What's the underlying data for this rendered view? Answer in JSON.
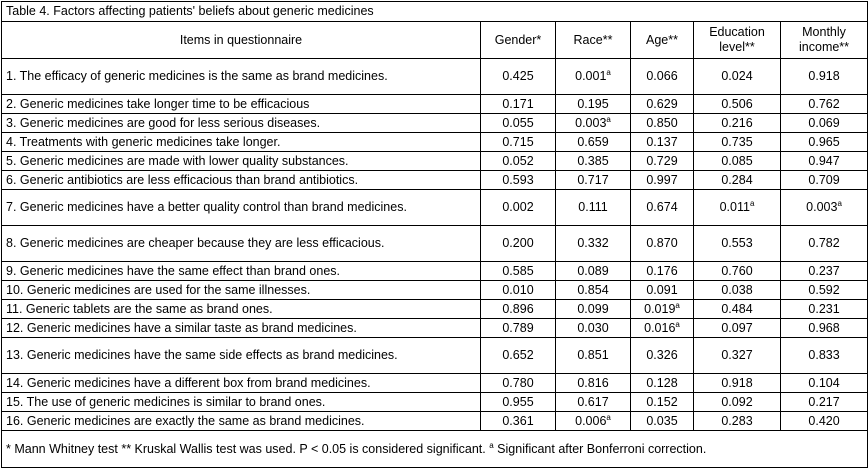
{
  "title": "Table 4. Factors affecting patients' beliefs about generic medicines",
  "header": [
    "Items in questionnaire",
    "Gender*",
    "Race**",
    "Age**",
    "Education level**",
    "Monthly income**"
  ],
  "rows": [
    [
      "1. The efficacy of generic medicines is the same as brand medicines.",
      "0.425",
      {
        "text": "0.001",
        "sup": "a"
      },
      "0.066",
      "0.024",
      "0.918"
    ],
    [
      "2. Generic medicines take longer time to be efficacious",
      "0.171",
      "0.195",
      "0.629",
      "0.506",
      "0.762"
    ],
    [
      "3. Generic medicines are good for less serious diseases.",
      "0.055",
      {
        "text": "0.003",
        "sup": "a"
      },
      "0.850",
      "0.216",
      "0.069"
    ],
    [
      "4. Treatments with generic medicines take longer.",
      "0.715",
      "0.659",
      "0.137",
      "0.735",
      "0.965"
    ],
    [
      "5. Generic medicines are made with lower quality substances.",
      "0.052",
      "0.385",
      "0.729",
      "0.085",
      "0.947"
    ],
    [
      "6. Generic antibiotics are less efficacious than brand antibiotics.",
      "0.593",
      "0.717",
      "0.997",
      "0.284",
      "0.709"
    ],
    [
      "7. Generic medicines have a better quality control than brand medicines.",
      "0.002",
      "0.111",
      "0.674",
      {
        "text": "0.011",
        "sup": "a"
      },
      {
        "text": "0.003",
        "sup": "a"
      }
    ],
    [
      "8. Generic medicines are cheaper because they are less efficacious.",
      "0.200",
      "0.332",
      "0.870",
      "0.553",
      "0.782"
    ],
    [
      "9. Generic medicines have the same effect than brand ones.",
      "0.585",
      "0.089",
      "0.176",
      "0.760",
      "0.237"
    ],
    [
      "10. Generic medicines are used for the same illnesses.",
      "0.010",
      "0.854",
      "0.091",
      "0.038",
      "0.592"
    ],
    [
      "11. Generic tablets are the same as brand ones.",
      "0.896",
      "0.099",
      {
        "text": "0.019",
        "sup": "a"
      },
      "0.484",
      "0.231"
    ],
    [
      "12. Generic medicines have a similar taste as brand medicines.",
      "0.789",
      "0.030",
      {
        "text": "0.016",
        "sup": "a"
      },
      "0.097",
      "0.968"
    ],
    [
      "13. Generic medicines have the same side effects as brand medicines.",
      "0.652",
      "0.851",
      "0.326",
      "0.327",
      "0.833"
    ],
    [
      "14. Generic medicines have a different box from brand medicines.",
      "0.780",
      "0.816",
      "0.128",
      "0.918",
      "0.104"
    ],
    [
      "15. The use of generic medicines is similar to brand ones.",
      "0.955",
      "0.617",
      "0.152",
      "0.092",
      "0.217"
    ],
    [
      "16. Generic medicines are exactly the same as brand medicines.",
      "0.361",
      {
        "text": "0.006",
        "sup": "a"
      },
      "0.035",
      "0.283",
      "0.420"
    ]
  ],
  "footnote": {
    "before": "* Mann Whitney test ** Kruskal Wallis test was used. P < 0.05 is considered significant.",
    "sup": "a",
    "after": "Significant after Bonferroni correction."
  }
}
